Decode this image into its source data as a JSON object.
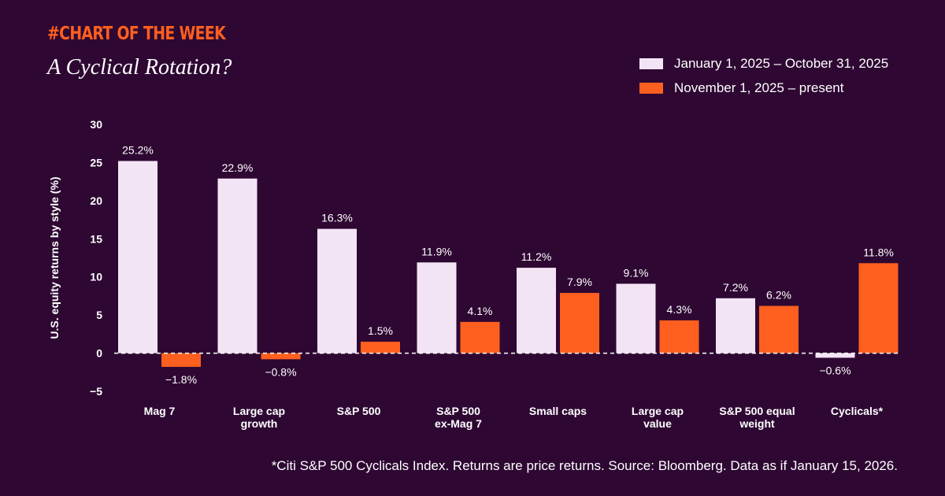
{
  "header": {
    "kicker": "#CHART OF THE WEEK",
    "title": "A Cyclical Rotation?"
  },
  "colors": {
    "background": "#2e0833",
    "accent": "#ff5f1f",
    "series_light": "#f3e4f5",
    "series_orange": "#ff5f1f"
  },
  "footnote": "*Citi S&P 500 Cyclicals Index. Returns are price returns. Source: Bloomberg. Data as if January 15, 2026.",
  "chart_data": {
    "type": "bar",
    "title": "A Cyclical Rotation?",
    "xlabel": "",
    "ylabel": "U.S. equity returns by style (%)",
    "ylim": [
      -5,
      30
    ],
    "yticks": [
      -5,
      0,
      5,
      10,
      15,
      20,
      25,
      30
    ],
    "ytick_labels": [
      "−5",
      "0",
      "5",
      "10",
      "15",
      "20",
      "25",
      "30"
    ],
    "grid": false,
    "zero_line": "dashed",
    "legend_position": "top-right",
    "categories": [
      [
        "Mag 7"
      ],
      [
        "Large cap",
        "growth"
      ],
      [
        "S&P 500"
      ],
      [
        "S&P 500",
        "ex-Mag 7"
      ],
      [
        "Small caps"
      ],
      [
        "Large cap",
        "value"
      ],
      [
        "S&P 500 equal",
        "weight"
      ],
      [
        "Cyclicals*"
      ]
    ],
    "series": [
      {
        "name": "January 1, 2025 – October 31, 2025",
        "color": "#f3e4f5",
        "values": [
          25.2,
          22.9,
          16.3,
          11.9,
          11.2,
          9.1,
          7.2,
          -0.6
        ],
        "labels": [
          "25.2%",
          "22.9%",
          "16.3%",
          "11.9%",
          "11.2%",
          "9.1%",
          "7.2%",
          "−0.6%"
        ]
      },
      {
        "name": "November 1, 2025 – present",
        "color": "#ff5f1f",
        "values": [
          -1.8,
          -0.8,
          1.5,
          4.1,
          7.9,
          4.3,
          6.2,
          11.8
        ],
        "labels": [
          "−1.8%",
          "−0.8%",
          "1.5%",
          "4.1%",
          "7.9%",
          "4.3%",
          "6.2%",
          "11.8%"
        ]
      }
    ]
  }
}
